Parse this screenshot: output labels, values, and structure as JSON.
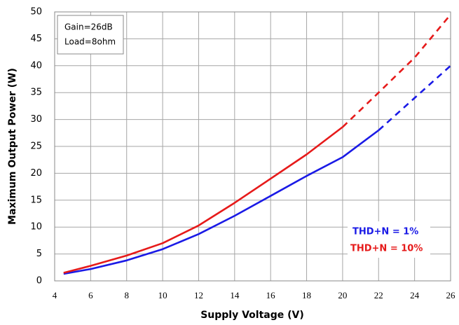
{
  "chart_data": {
    "type": "line",
    "xlabel": "Supply Voltage (V)",
    "ylabel": "Maximum Output Power (W)",
    "annotations": [
      "Gain=26dB",
      "Load=8ohm"
    ],
    "xlim": [
      4,
      26
    ],
    "xticks": [
      4,
      6,
      8,
      10,
      12,
      14,
      16,
      18,
      20,
      22,
      24,
      26
    ],
    "ylim": [
      0,
      50
    ],
    "yticks": [
      0,
      5,
      10,
      15,
      20,
      25,
      30,
      35,
      40,
      45,
      50
    ],
    "grid": true,
    "legend": "lower right",
    "series": [
      {
        "name": "THD+N = 1%",
        "color": "#1a1ae6",
        "dash_from": 22,
        "x": [
          4.5,
          6,
          8,
          10,
          12,
          14,
          16,
          18,
          20,
          22,
          24,
          26
        ],
        "values": [
          1.3,
          2.2,
          3.8,
          5.9,
          8.7,
          12.1,
          15.8,
          19.5,
          23,
          28,
          34,
          40
        ]
      },
      {
        "name": "THD+N = 10%",
        "color": "#e61a1a",
        "dash_from": 20,
        "x": [
          4.5,
          6,
          8,
          10,
          12,
          14,
          16,
          18,
          20,
          22,
          24,
          26
        ],
        "values": [
          1.5,
          2.8,
          4.7,
          7,
          10.3,
          14.5,
          19,
          23.5,
          28.6,
          35,
          41.5,
          49.5
        ]
      }
    ]
  }
}
